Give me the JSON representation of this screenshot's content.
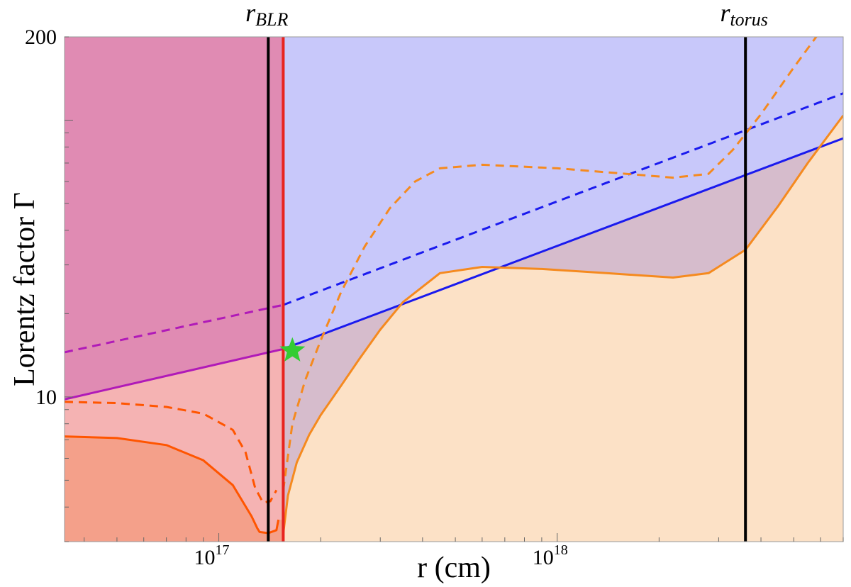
{
  "chart_data": {
    "type": "line",
    "xlabel": "r (cm)",
    "ylabel": "Lorentz factor Γ",
    "x_scale": "log",
    "y_scale": "log",
    "xlim": [
      3.5e+16,
      7e+18
    ],
    "ylim": [
      3.0,
      200
    ],
    "x_ticks": [
      {
        "value": 1e+17,
        "label": "10",
        "exp": "17"
      },
      {
        "value": 1e+18,
        "label": "10",
        "exp": "18"
      }
    ],
    "y_ticks": [
      {
        "value": 10,
        "label": "10"
      },
      {
        "value": 200,
        "label": "200"
      }
    ],
    "vertical_markers": [
      {
        "x": 1.4e+17,
        "label": "r",
        "sub": "BLR",
        "color": "#000000"
      },
      {
        "x": 3.6e+18,
        "label": "r",
        "sub": "torus",
        "color": "#000000"
      },
      {
        "x": 1.55e+17,
        "label": "",
        "sub": "",
        "color": "#e8231e"
      }
    ],
    "series": [
      {
        "style": "solid",
        "color": "#1a1aee",
        "x": [
          1.55e+17,
          7e+18
        ],
        "y": [
          14.9,
          86
        ]
      },
      {
        "style": "dashed",
        "color": "#1a1aee",
        "x": [
          1.55e+17,
          7e+18
        ],
        "y": [
          21.5,
          125
        ]
      },
      {
        "style": "solid",
        "color": "#b01ab8",
        "x": [
          3.5e+16,
          1.55e+17
        ],
        "y": [
          9.8,
          14.9
        ]
      },
      {
        "style": "dashed",
        "color": "#b01ab8",
        "x": [
          3.5e+16,
          1.55e+17
        ],
        "y": [
          14.5,
          21.5
        ]
      },
      {
        "style": "solid",
        "color": "#ff5500",
        "x": [
          3.5e+16,
          5e+16,
          7e+16,
          9e+16,
          1.1e+17,
          1.25e+17,
          1.3e+17,
          1.32e+17,
          1.4e+17,
          1.48e+17,
          1.5e+17
        ],
        "y": [
          7.2,
          7.1,
          6.7,
          5.9,
          4.8,
          3.7,
          3.35,
          3.25,
          3.22,
          3.3,
          3.6
        ]
      },
      {
        "style": "dashed",
        "color": "#ff5500",
        "x": [
          3.5e+16,
          5e+16,
          7e+16,
          9e+16,
          1.1e+17,
          1.2e+17,
          1.28e+17,
          1.35e+17,
          1.42e+17,
          1.48e+17
        ],
        "y": [
          9.6,
          9.5,
          9.2,
          8.7,
          7.6,
          6.3,
          4.7,
          4.15,
          4.2,
          4.6
        ]
      },
      {
        "style": "solid",
        "color": "#f58a1f",
        "x": [
          1.55e+17,
          1.6e+17,
          1.7e+17,
          1.85e+17,
          2e+17,
          2.3e+17,
          2.6e+17,
          3e+17,
          3.5e+17,
          4.5e+17,
          6e+17,
          9e+17,
          1.4e+18,
          2.2e+18,
          2.8e+18,
          3.6e+18,
          4.5e+18,
          5.5e+18,
          7e+18
        ],
        "y": [
          3.2,
          4.4,
          5.8,
          7.3,
          8.6,
          11.0,
          13.7,
          17.5,
          22.0,
          28.0,
          29.5,
          29.0,
          28.0,
          27.0,
          28.0,
          34.0,
          49.0,
          70.0,
          104.0
        ]
      },
      {
        "style": "dashed",
        "color": "#f58a1f",
        "x": [
          1.55e+17,
          1.65e+17,
          1.8e+17,
          2e+17,
          2.3e+17,
          2.7e+17,
          3.2e+17,
          3.8e+17,
          4.5e+17,
          6e+17,
          1e+18,
          1.6e+18,
          2.2e+18,
          2.8e+18,
          3.3e+18,
          4e+18,
          5e+18,
          6e+18
        ],
        "y": [
          4.6,
          8.0,
          11.5,
          16.0,
          24.0,
          35.0,
          48.0,
          60.0,
          67.0,
          69.0,
          67.0,
          64.0,
          62.0,
          64.0,
          78.0,
          105.0,
          155.0,
          210.0
        ]
      }
    ],
    "shaded_regions": [
      {
        "name": "",
        "color": "#c8c8fa"
      },
      {
        "name": "",
        "color": "#fce1c6"
      },
      {
        "name": "",
        "color": "#f5b3b3"
      },
      {
        "name": "",
        "color": "#e08bb3"
      },
      {
        "name": "",
        "color": "#f4a08a"
      }
    ],
    "star": {
      "x": 1.65e+17,
      "y": 14.7,
      "color": "#33cc33"
    }
  }
}
